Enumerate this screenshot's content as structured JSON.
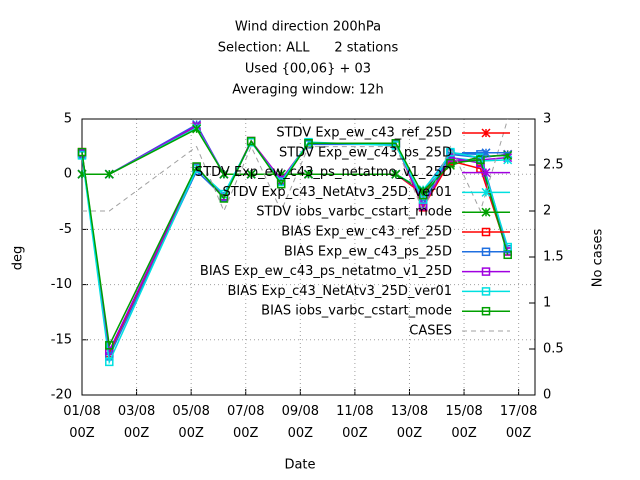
{
  "chart_data": {
    "type": "line",
    "title": [
      "Wind direction 200hPa",
      "Selection: ALL      2 stations",
      "Used {00,06} + 03",
      "Averaging window: 12h"
    ],
    "xlabel": "Date",
    "ylabel": "deg",
    "y2label": "No cases",
    "x": [
      0,
      1,
      4.2,
      5.2,
      6.2,
      7.3,
      8.3,
      11.5,
      12.5,
      13.5,
      14.6,
      15.6
    ],
    "xlim": [
      0,
      16.6
    ],
    "xticks": [
      {
        "value": 0,
        "label": "01/08 00Z"
      },
      {
        "value": 2,
        "label": "03/08 00Z"
      },
      {
        "value": 4,
        "label": "05/08 00Z"
      },
      {
        "value": 6,
        "label": "07/08 00Z"
      },
      {
        "value": 8,
        "label": "09/08 00Z"
      },
      {
        "value": 10,
        "label": "11/08 00Z"
      },
      {
        "value": 12,
        "label": "13/08 00Z"
      },
      {
        "value": 14,
        "label": "15/08 00Z"
      },
      {
        "value": 16,
        "label": "17/08 00Z"
      }
    ],
    "ylim": [
      -20,
      5
    ],
    "yticks": [
      -20,
      -15,
      -10,
      -5,
      0,
      5
    ],
    "y2lim": [
      0,
      3
    ],
    "y2ticks": [
      0,
      0.5,
      1,
      1.5,
      2,
      2.5,
      3
    ],
    "grid": true,
    "legend": "top-right",
    "series": [
      {
        "name": "STDV Exp_ew_c43_ref_25D",
        "color": "#ff0000",
        "marker": "cross",
        "values": [
          0,
          0,
          4.3,
          0,
          0,
          0,
          0,
          0,
          -1.8,
          1.0,
          1.5,
          1.8
        ]
      },
      {
        "name": "STDV Exp_ew_c43_ps_25D",
        "color": "#1f6fe0",
        "marker": "cross",
        "values": [
          0,
          0,
          4.5,
          0,
          0,
          0,
          0,
          0,
          -1.5,
          1.8,
          1.5,
          1.8
        ]
      },
      {
        "name": "STDV Exp_ew_c43_ps_netatmo_v1_25D",
        "color": "#a000e0",
        "marker": "cross",
        "values": [
          0,
          0,
          4.4,
          0,
          0,
          0,
          0,
          0,
          -1.6,
          1.2,
          1.3,
          1.5
        ]
      },
      {
        "name": "STDV Exp_c43_NetAtv3_25D_ver01",
        "color": "#00e0e0",
        "marker": "cross",
        "values": [
          0,
          0,
          4.2,
          0,
          0,
          0,
          0,
          0,
          -1.4,
          1.5,
          1.2,
          1.3
        ]
      },
      {
        "name": "STDV iobs_varbc_cstart_mode",
        "color": "#00a000",
        "marker": "cross",
        "values": [
          0,
          0,
          4.1,
          0,
          0,
          0,
          0,
          0,
          -1.5,
          0.8,
          1.6,
          1.7
        ]
      },
      {
        "name": "BIAS Exp_ew_c43_ref_25D",
        "color": "#ff0000",
        "marker": "square",
        "values": [
          2.0,
          -16.2,
          0.6,
          -2.0,
          3.0,
          -0.5,
          2.8,
          2.8,
          -3.0,
          1.2,
          0.5,
          -7.0
        ]
      },
      {
        "name": "BIAS Exp_ew_c43_ps_25D",
        "color": "#1f6fe0",
        "marker": "square",
        "values": [
          1.8,
          -16.5,
          0.3,
          -2.1,
          2.9,
          -0.6,
          2.7,
          2.7,
          -2.7,
          1.9,
          1.8,
          -6.8
        ]
      },
      {
        "name": "BIAS Exp_ew_c43_ps_netatmo_v1_25D",
        "color": "#a000e0",
        "marker": "square",
        "values": [
          1.9,
          -16.0,
          0.6,
          -2.0,
          3.0,
          -0.5,
          2.8,
          2.8,
          -2.9,
          1.5,
          1.0,
          -7.0
        ]
      },
      {
        "name": "BIAS Exp_c43_NetAtv3_25D_ver01",
        "color": "#00e0e0",
        "marker": "square",
        "values": [
          1.7,
          -17.0,
          0.5,
          -1.8,
          2.9,
          -0.7,
          2.9,
          2.6,
          -2.3,
          2.0,
          1.5,
          -6.6
        ]
      },
      {
        "name": "BIAS iobs_varbc_cstart_mode",
        "color": "#00a000",
        "marker": "square",
        "values": [
          2.0,
          -15.5,
          0.7,
          -2.2,
          3.0,
          -0.9,
          2.8,
          2.8,
          -1.9,
          1.0,
          1.3,
          -7.3
        ]
      },
      {
        "name": "CASES",
        "color": "#a0a0a0",
        "marker": "none",
        "dashed": true,
        "axis": "y2",
        "values": [
          2,
          2,
          2.7,
          2,
          2.7,
          2,
          2.7,
          2.7,
          2,
          2.7,
          2,
          3
        ]
      }
    ]
  }
}
